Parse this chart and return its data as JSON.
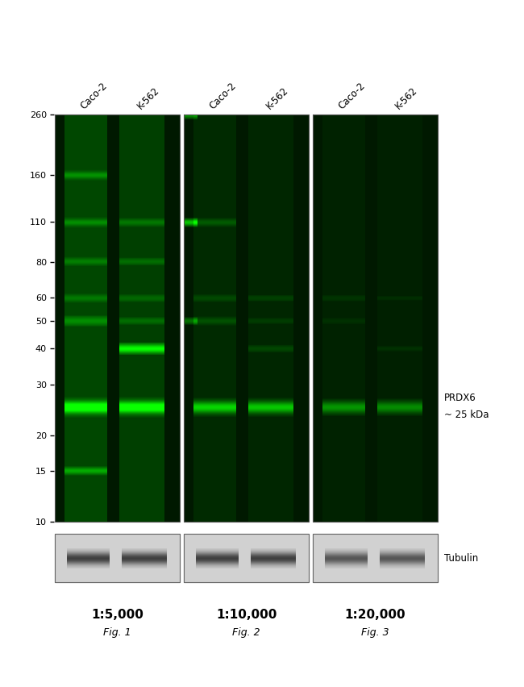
{
  "bg_color": "#ffffff",
  "gel_bg": "#003300",
  "mw_labels": [
    "260",
    "160",
    "110",
    "80",
    "60",
    "50",
    "40",
    "30",
    "20",
    "15",
    "10"
  ],
  "mw_values": [
    260,
    160,
    110,
    80,
    60,
    50,
    40,
    30,
    20,
    15,
    10
  ],
  "lane_labels": [
    "Caco-2",
    "K-562",
    "Caco-2",
    "K-562",
    "Caco-2",
    "K-562"
  ],
  "panel_labels": [
    "1:5,000",
    "1:10,000",
    "1:20,000"
  ],
  "fig_labels": [
    "Fig. 1",
    "Fig. 2",
    "Fig. 3"
  ],
  "figure_width": 6.5,
  "figure_height": 8.53
}
